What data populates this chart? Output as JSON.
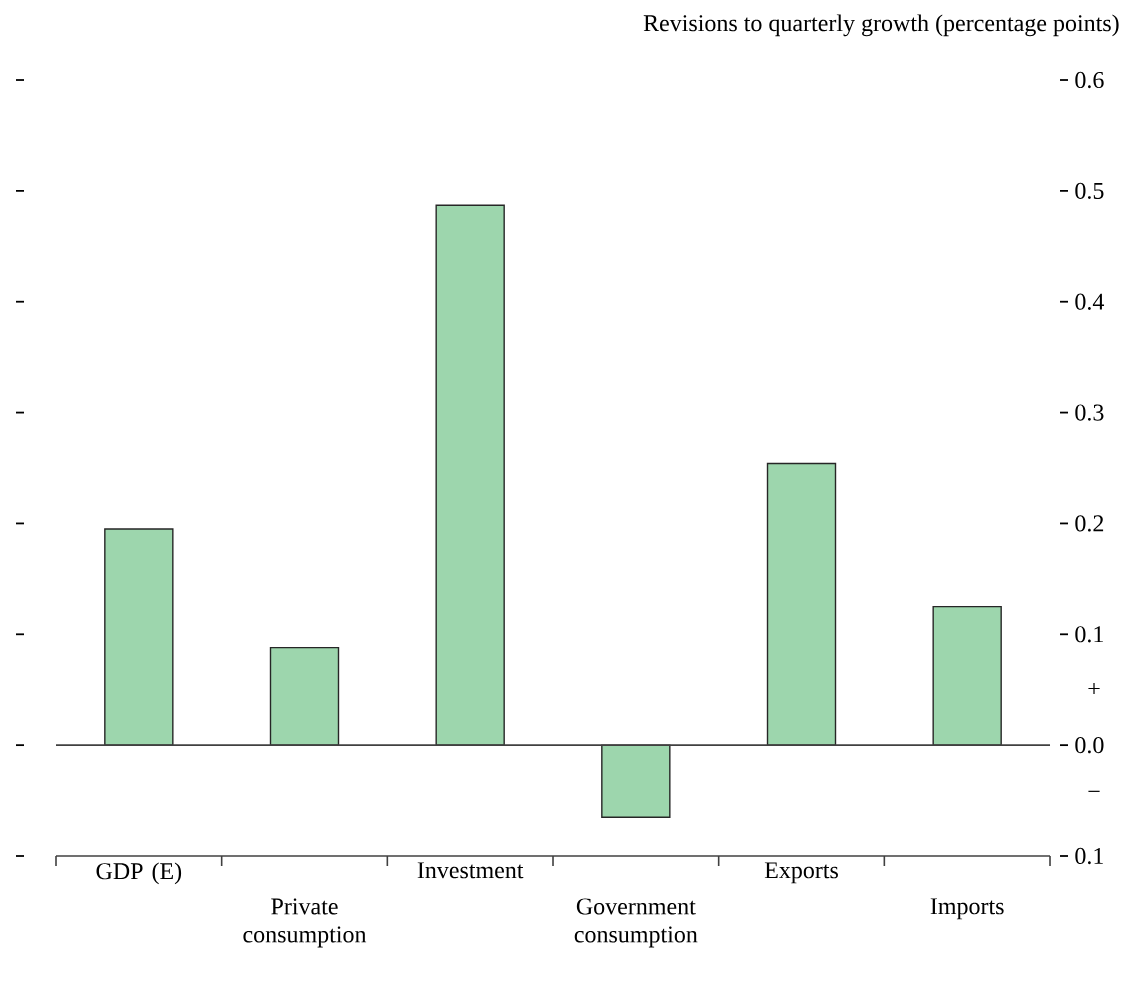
{
  "chart_data": {
    "type": "bar",
    "title": "Revisions to quarterly growth (percentage points)",
    "categories": [
      "GDP (E)",
      "Private consumption",
      "Investment",
      "Government consumption",
      "Exports",
      "Imports"
    ],
    "values": [
      0.195,
      0.088,
      0.487,
      -0.065,
      0.254,
      0.125
    ],
    "color": "#9dd6ad",
    "ylim": [
      -0.1,
      0.6
    ],
    "yticks": [
      {
        "value": -0.1,
        "label": "0.1"
      },
      {
        "value": 0,
        "label": "0.0"
      },
      0.1,
      0.2,
      0.3,
      0.4,
      0.5,
      0.6
    ],
    "annotations": [
      "+",
      "−"
    ]
  }
}
